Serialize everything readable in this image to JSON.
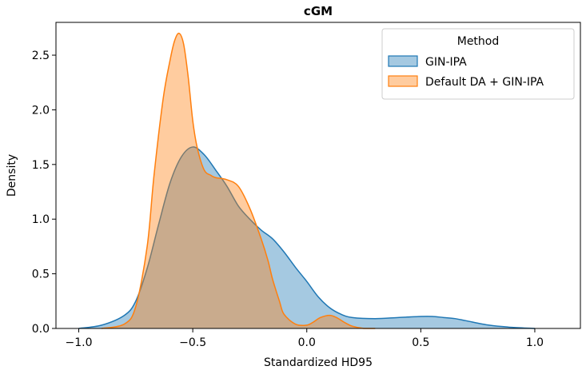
{
  "chart_data": {
    "type": "area",
    "title": "cGM",
    "xlabel": "Standardized HD95",
    "ylabel": "Density",
    "xlim": [
      -1.1,
      1.2
    ],
    "ylim": [
      0,
      2.8
    ],
    "xticks": [
      -1.0,
      -0.5,
      0.0,
      0.5,
      1.0
    ],
    "xtick_labels": [
      "−1.0",
      "−0.5",
      "0.0",
      "0.5",
      "1.0"
    ],
    "yticks": [
      0.0,
      0.5,
      1.0,
      1.5,
      2.0,
      2.5
    ],
    "ytick_labels": [
      "0.0",
      "0.5",
      "1.0",
      "1.5",
      "2.0",
      "2.5"
    ],
    "grid": false,
    "legend": {
      "title": "Method",
      "placement": "top-right"
    },
    "series": [
      {
        "name": "GIN-IPA",
        "color": "#1f77b4",
        "x": [
          -1.0,
          -0.9,
          -0.8,
          -0.75,
          -0.7,
          -0.65,
          -0.6,
          -0.55,
          -0.5,
          -0.45,
          -0.4,
          -0.35,
          -0.3,
          -0.25,
          -0.2,
          -0.15,
          -0.1,
          -0.05,
          0.0,
          0.05,
          0.1,
          0.15,
          0.2,
          0.3,
          0.4,
          0.5,
          0.55,
          0.6,
          0.65,
          0.7,
          0.8,
          0.9,
          1.0
        ],
        "y": [
          0.0,
          0.03,
          0.12,
          0.25,
          0.55,
          0.95,
          1.33,
          1.57,
          1.66,
          1.59,
          1.45,
          1.3,
          1.12,
          1.0,
          0.9,
          0.82,
          0.7,
          0.56,
          0.43,
          0.29,
          0.19,
          0.13,
          0.1,
          0.09,
          0.1,
          0.11,
          0.11,
          0.1,
          0.09,
          0.07,
          0.03,
          0.01,
          0.0
        ]
      },
      {
        "name": "Default DA + GIN-IPA",
        "color": "#ff7f0e",
        "x": [
          -0.9,
          -0.8,
          -0.75,
          -0.7,
          -0.67,
          -0.63,
          -0.6,
          -0.58,
          -0.56,
          -0.54,
          -0.52,
          -0.5,
          -0.48,
          -0.45,
          -0.42,
          -0.4,
          -0.35,
          -0.3,
          -0.25,
          -0.2,
          -0.17,
          -0.15,
          -0.12,
          -0.1,
          -0.05,
          0.0,
          0.03,
          0.06,
          0.1,
          0.13,
          0.17,
          0.2,
          0.25,
          0.3
        ],
        "y": [
          0.0,
          0.04,
          0.2,
          0.75,
          1.4,
          2.1,
          2.45,
          2.63,
          2.7,
          2.6,
          2.3,
          1.9,
          1.65,
          1.45,
          1.4,
          1.38,
          1.36,
          1.3,
          1.1,
          0.82,
          0.62,
          0.45,
          0.25,
          0.13,
          0.04,
          0.03,
          0.06,
          0.1,
          0.12,
          0.1,
          0.05,
          0.02,
          0.0,
          0.0
        ]
      }
    ]
  }
}
